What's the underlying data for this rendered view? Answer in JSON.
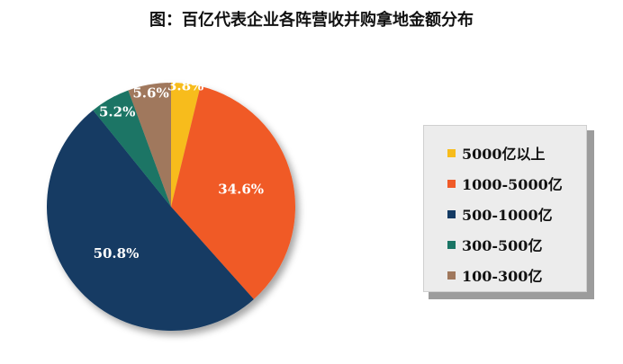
{
  "chart_data": {
    "type": "pie",
    "title": "图：百亿代表企业各阵营收并购拿地金额分布",
    "slices": [
      {
        "name": "5000亿以上",
        "value": 3.8,
        "label": "3.8%",
        "color": "#f7bc1c"
      },
      {
        "name": "1000-5000亿",
        "value": 34.6,
        "label": "34.6%",
        "color": "#f05a28"
      },
      {
        "name": "500-1000亿",
        "value": 50.8,
        "label": "50.8%",
        "color": "#133a63"
      },
      {
        "name": "300-500亿",
        "value": 5.2,
        "label": "5.2%",
        "color": "#1a7565"
      },
      {
        "name": "100-300亿",
        "value": 5.6,
        "label": "5.6%",
        "color": "#a0785d"
      }
    ],
    "legend_position": "right"
  }
}
